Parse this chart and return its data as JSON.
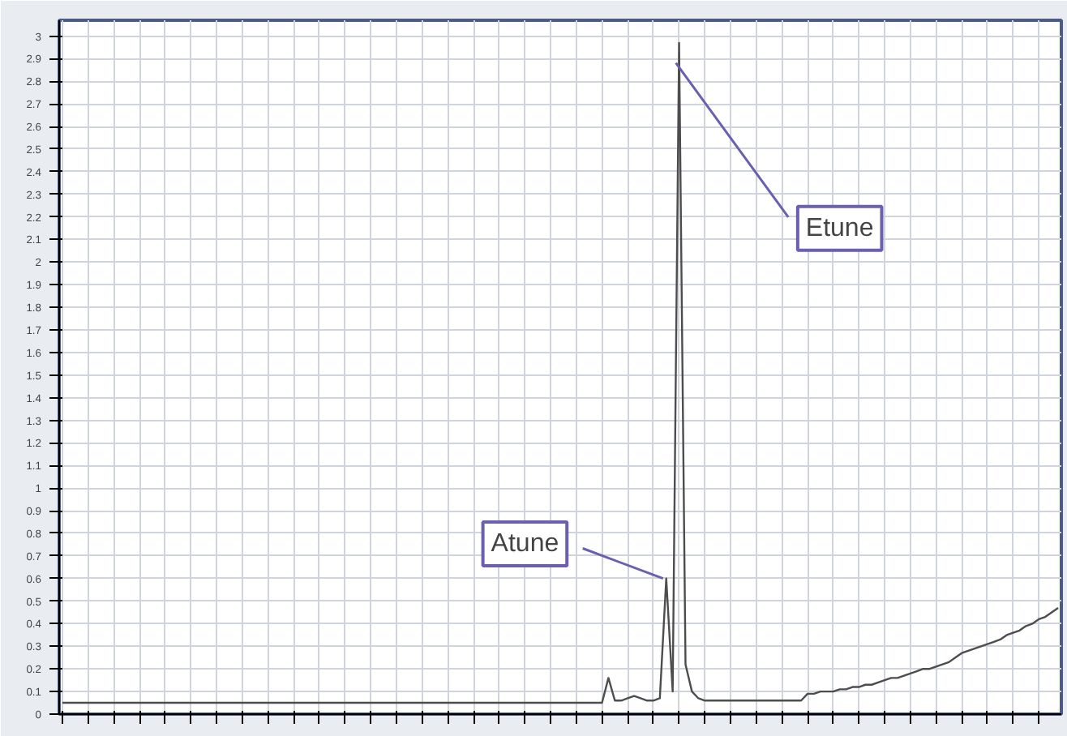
{
  "chart_data": {
    "type": "line",
    "categories": [
      null,
      null,
      null,
      null,
      null,
      null,
      null,
      null,
      null,
      null,
      null,
      null,
      null,
      null,
      null,
      null,
      null,
      null,
      null,
      null,
      null,
      null,
      null,
      null,
      null,
      null,
      null,
      null,
      null,
      null,
      null,
      null,
      null,
      null,
      null,
      null,
      null,
      null,
      null,
      null,
      null,
      null,
      null,
      null,
      null,
      null,
      null,
      null,
      null,
      null,
      null,
      null,
      null,
      null,
      null,
      null,
      null,
      null,
      null,
      null,
      null,
      null,
      null,
      null,
      null,
      null,
      null,
      null,
      null,
      null,
      null,
      null,
      null,
      null,
      null,
      null,
      null,
      null,
      null,
      null,
      null,
      null,
      null,
      null,
      null,
      null,
      null,
      null,
      null,
      null,
      null,
      null,
      null,
      null,
      null,
      null,
      null,
      null,
      null,
      null,
      null,
      null,
      null,
      null,
      null,
      null,
      null,
      null,
      null,
      null,
      null,
      null,
      null,
      null,
      null,
      null,
      null,
      null,
      null,
      null,
      null,
      null,
      null,
      null,
      null,
      null,
      null,
      null,
      null,
      null,
      null,
      null,
      null,
      null,
      null,
      null,
      null,
      null,
      null,
      null,
      null,
      null,
      null,
      null,
      null,
      null,
      null,
      null,
      null,
      null,
      null,
      null,
      null,
      null,
      null,
      null
    ],
    "series": [
      {
        "color": "#4d4d4d",
        "values": [
          0.05,
          0.05,
          0.05,
          0.05,
          0.05,
          0.05,
          0.05,
          0.05,
          0.05,
          0.05,
          0.05,
          0.05,
          0.05,
          0.05,
          0.05,
          0.05,
          0.05,
          0.05,
          0.05,
          0.05,
          0.05,
          0.05,
          0.05,
          0.05,
          0.05,
          0.05,
          0.05,
          0.05,
          0.05,
          0.05,
          0.05,
          0.05,
          0.05,
          0.05,
          0.05,
          0.05,
          0.05,
          0.05,
          0.05,
          0.05,
          0.05,
          0.05,
          0.05,
          0.05,
          0.05,
          0.05,
          0.05,
          0.05,
          0.05,
          0.05,
          0.05,
          0.05,
          0.05,
          0.05,
          0.05,
          0.05,
          0.05,
          0.05,
          0.05,
          0.05,
          0.05,
          0.05,
          0.05,
          0.05,
          0.05,
          0.05,
          0.05,
          0.05,
          0.05,
          0.05,
          0.05,
          0.05,
          0.05,
          0.05,
          0.05,
          0.05,
          0.05,
          0.05,
          0.05,
          0.05,
          0.05,
          0.05,
          0.05,
          0.05,
          0.05,
          0.16,
          0.06,
          0.06,
          0.07,
          0.08,
          0.07,
          0.06,
          0.06,
          0.07,
          0.6,
          0.1,
          2.97,
          0.22,
          0.1,
          0.07,
          0.06,
          0.06,
          0.06,
          0.06,
          0.06,
          0.06,
          0.06,
          0.06,
          0.06,
          0.06,
          0.06,
          0.06,
          0.06,
          0.06,
          0.06,
          0.06,
          0.09,
          0.09,
          0.1,
          0.1,
          0.1,
          0.11,
          0.11,
          0.12,
          0.12,
          0.13,
          0.13,
          0.14,
          0.15,
          0.16,
          0.16,
          0.17,
          0.18,
          0.19,
          0.2,
          0.2,
          0.21,
          0.22,
          0.23,
          0.25,
          0.27,
          0.28,
          0.29,
          0.3,
          0.31,
          0.32,
          0.33,
          0.35,
          0.36,
          0.37,
          0.39,
          0.4,
          0.42,
          0.43,
          0.45,
          0.47
        ]
      }
    ],
    "ylim": [
      0,
      3.07
    ],
    "yticks": [
      0,
      0.1,
      0.2,
      0.3,
      0.4,
      0.5,
      0.6,
      0.7,
      0.8,
      0.9,
      1,
      1.1,
      1.2,
      1.3,
      1.4,
      1.5,
      1.6,
      1.7,
      1.8,
      1.9,
      2,
      2.1,
      2.2,
      2.3,
      2.4,
      2.5,
      2.6,
      2.7,
      2.8,
      2.9,
      3
    ],
    "tick_labels": "y",
    "grid": true,
    "annotations": [
      "Atune",
      "Etune"
    ]
  }
}
